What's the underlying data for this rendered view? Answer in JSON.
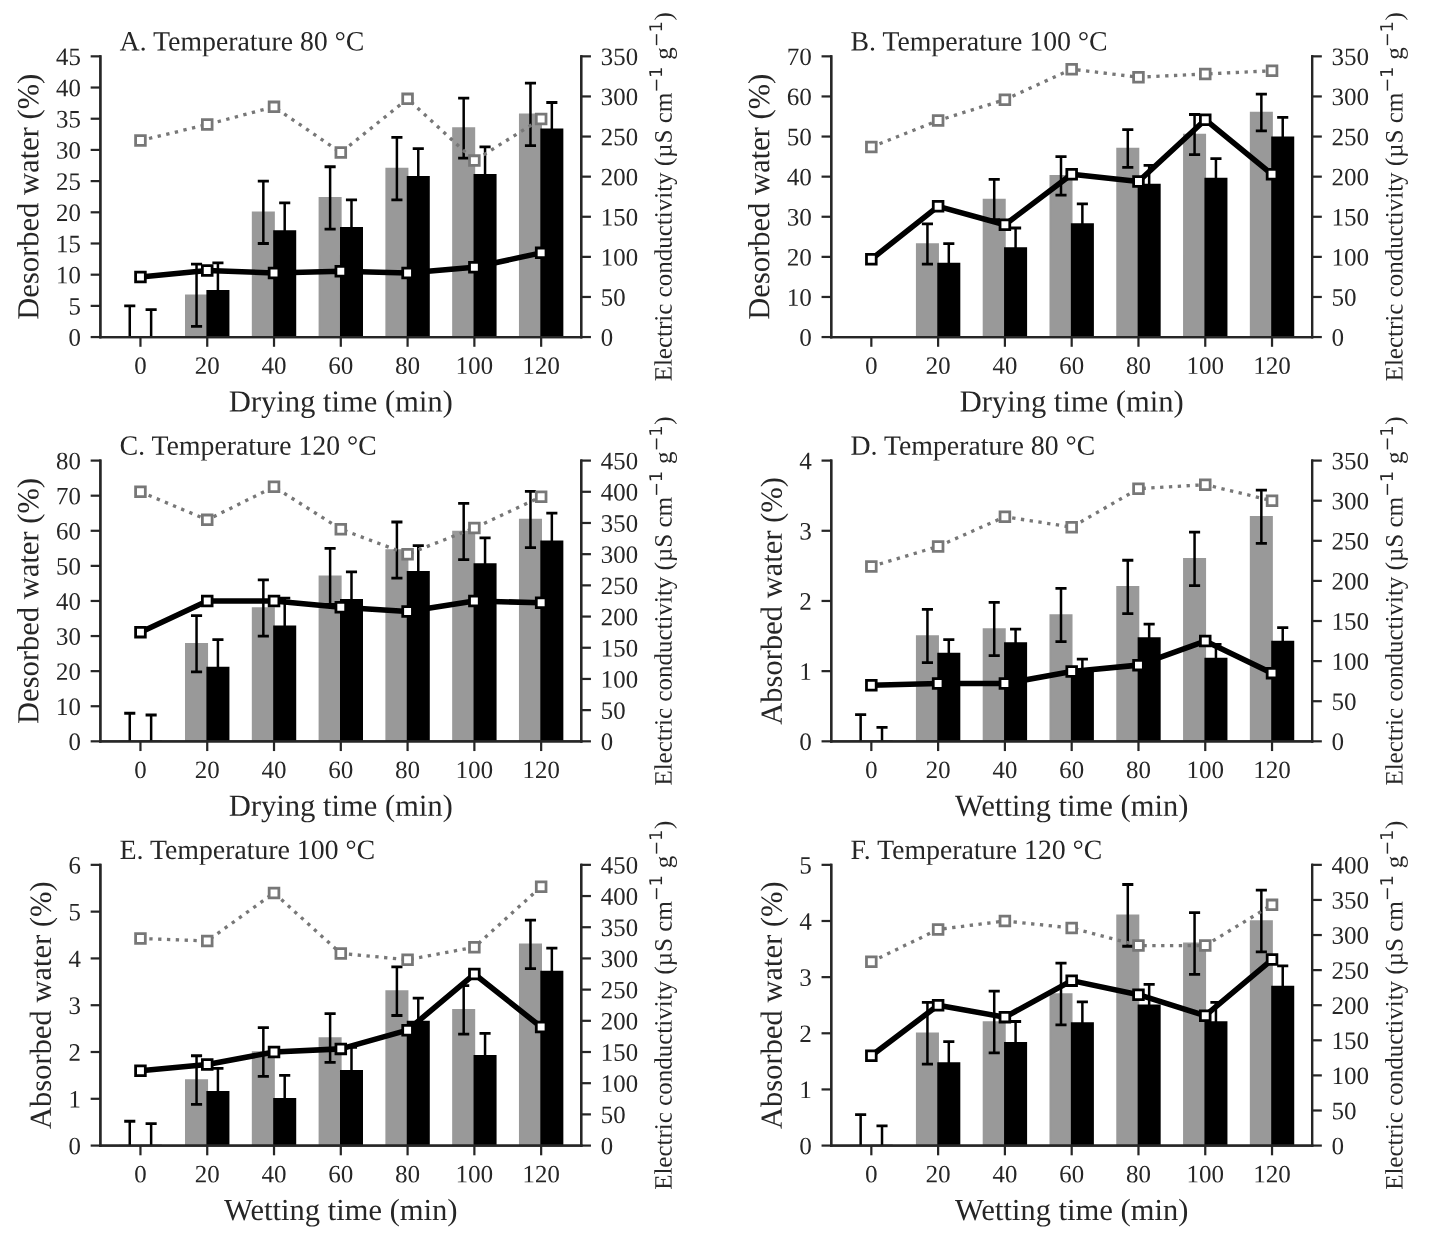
{
  "chart_data": [
    {
      "type": "bar",
      "title": "A. Temperature 80 °C",
      "xlabel": "Drying time (min)",
      "ylabel": "Desorbed water (%)",
      "y2label": "Electric conductivity (µS cm$^{−1}$ g$^{−1}$)",
      "categories": [
        "0",
        "20",
        "40",
        "60",
        "80",
        "100",
        "120"
      ],
      "ylim": [
        0,
        45
      ],
      "yticks": [
        0,
        5,
        10,
        15,
        20,
        25,
        30,
        35,
        40,
        45
      ],
      "y2lim": [
        0,
        350
      ],
      "y2ticks": [
        0,
        50,
        100,
        150,
        200,
        250,
        300,
        350
      ],
      "series": [
        {
          "type": "bar",
          "color": "#999999",
          "values": [
            0,
            6.7,
            20,
            22.3,
            27,
            33.5,
            35.7
          ],
          "errors": [
            5,
            5,
            5,
            5,
            5,
            4.8,
            5
          ]
        },
        {
          "type": "bar",
          "color": "#000000",
          "values": [
            0,
            7.4,
            17,
            17.5,
            25.7,
            26,
            33.3
          ],
          "errors": [
            4.4,
            4.5,
            4.5,
            4.5,
            4.5,
            4.5,
            4.3
          ]
        },
        {
          "type": "line",
          "axis": "y2",
          "color": "#777777",
          "marker": "square",
          "line_style": "dotted",
          "values": [
            245,
            265,
            287,
            230,
            297,
            220,
            272
          ]
        },
        {
          "type": "line",
          "axis": "y2",
          "color": "#000000",
          "marker": "square",
          "line_style": "solid",
          "values": [
            75,
            83,
            80,
            82,
            80,
            87,
            105
          ]
        }
      ]
    },
    {
      "type": "bar",
      "title": "B. Temperature 100 °C",
      "xlabel": "Drying time (min)",
      "ylabel": "Desorbed water (%)",
      "y2label": "Electric conductivity (µS cm$^{−1}$ g$^{−1}$)",
      "categories": [
        "0",
        "20",
        "40",
        "60",
        "80",
        "100",
        "120"
      ],
      "ylim": [
        0,
        70
      ],
      "yticks": [
        0,
        10,
        20,
        30,
        40,
        50,
        60,
        70
      ],
      "y2lim": [
        0,
        350
      ],
      "y2ticks": [
        0,
        50,
        100,
        150,
        200,
        250,
        300,
        350
      ],
      "series": [
        {
          "type": "bar",
          "color": "#999999",
          "values": [
            0,
            23.2,
            34.3,
            40.2,
            47,
            50.5,
            56
          ],
          "errors": [
            null,
            5,
            5,
            4.8,
            4.7,
            5,
            4.6
          ]
        },
        {
          "type": "bar",
          "color": "#000000",
          "values": [
            0,
            18.3,
            22.2,
            28.2,
            38,
            39.5,
            49.8
          ],
          "errors": [
            null,
            5,
            5,
            5,
            4.8,
            5,
            5
          ]
        },
        {
          "type": "line",
          "axis": "y2",
          "color": "#777777",
          "marker": "square",
          "line_style": "dotted",
          "values": [
            237,
            270,
            296,
            334,
            324,
            328,
            332
          ]
        },
        {
          "type": "line",
          "axis": "y2",
          "color": "#000000",
          "marker": "square",
          "line_style": "solid",
          "values": [
            97,
            163,
            140,
            203,
            194,
            271,
            203
          ]
        }
      ]
    },
    {
      "type": "bar",
      "title": "C. Temperature 120 °C",
      "xlabel": "Drying time (min)",
      "ylabel": "Desorbed water (%)",
      "y2label": "Electric conductivity (µS cm$^{−1}$ g$^{−1}$)",
      "categories": [
        "0",
        "20",
        "40",
        "60",
        "80",
        "100",
        "120"
      ],
      "ylim": [
        0,
        80
      ],
      "yticks": [
        0,
        10,
        20,
        30,
        40,
        50,
        60,
        70,
        80
      ],
      "y2lim": [
        0,
        450
      ],
      "y2ticks": [
        0,
        50,
        100,
        150,
        200,
        250,
        300,
        350,
        400,
        450
      ],
      "series": [
        {
          "type": "bar",
          "color": "#999999",
          "values": [
            0,
            27.8,
            38,
            47,
            54.5,
            59.8,
            63.2
          ],
          "errors": [
            8,
            8,
            8,
            8,
            8,
            8,
            8
          ]
        },
        {
          "type": "bar",
          "color": "#000000",
          "values": [
            0,
            21,
            32.8,
            40.3,
            48.3,
            50.5,
            57
          ],
          "errors": [
            7.5,
            8,
            8,
            8,
            7.5,
            7.5,
            8
          ]
        },
        {
          "type": "line",
          "axis": "y2",
          "color": "#777777",
          "marker": "square",
          "line_style": "dotted",
          "values": [
            400,
            355,
            408,
            340,
            300,
            342,
            392
          ]
        },
        {
          "type": "line",
          "axis": "y2",
          "color": "#000000",
          "marker": "square",
          "line_style": "solid",
          "values": [
            175,
            225,
            225,
            215,
            208,
            225,
            222
          ]
        }
      ]
    },
    {
      "type": "bar",
      "title": "D. Temperature 80 °C",
      "xlabel": "Wetting time (min)",
      "ylabel": "Absorbed water (%)",
      "y2label": "Electric conductivity (µS cm$^{−1}$ g$^{−1}$)",
      "categories": [
        "0",
        "20",
        "40",
        "60",
        "80",
        "100",
        "120"
      ],
      "ylim": [
        0,
        4
      ],
      "yticks": [
        0,
        1,
        2,
        3,
        4
      ],
      "y2lim": [
        0,
        350
      ],
      "y2ticks": [
        0,
        50,
        100,
        150,
        200,
        250,
        300,
        350
      ],
      "series": [
        {
          "type": "bar",
          "color": "#999999",
          "values": [
            0,
            1.5,
            1.6,
            1.8,
            2.2,
            2.6,
            3.2
          ],
          "errors": [
            0.38,
            0.38,
            0.38,
            0.38,
            0.38,
            0.38,
            0.38
          ]
        },
        {
          "type": "bar",
          "color": "#000000",
          "values": [
            0,
            1.25,
            1.4,
            1.0,
            1.47,
            1.18,
            1.42
          ],
          "errors": [
            0.2,
            0.2,
            0.2,
            0.17,
            0.2,
            0.2,
            0.2
          ]
        },
        {
          "type": "line",
          "axis": "y2",
          "color": "#777777",
          "marker": "square",
          "line_style": "dotted",
          "values": [
            218,
            243,
            280,
            267,
            315,
            320,
            300
          ]
        },
        {
          "type": "line",
          "axis": "y2",
          "color": "#000000",
          "marker": "square",
          "line_style": "solid",
          "values": [
            70,
            72,
            72,
            87,
            95,
            125,
            85
          ]
        }
      ]
    },
    {
      "type": "bar",
      "title": "E. Temperature 100 °C",
      "xlabel": "Wetting time (min)",
      "ylabel": "Absorbed water (%)",
      "y2label": "Electric conductivity (µS cm$^{−1}$ g$^{−1}$)",
      "categories": [
        "0",
        "20",
        "40",
        "60",
        "80",
        "100",
        "120"
      ],
      "ylim": [
        0,
        6
      ],
      "yticks": [
        0,
        1,
        2,
        3,
        4,
        5,
        6
      ],
      "y2lim": [
        0,
        450
      ],
      "y2ticks": [
        0,
        50,
        100,
        150,
        200,
        250,
        300,
        350,
        400,
        450
      ],
      "series": [
        {
          "type": "bar",
          "color": "#999999",
          "values": [
            0,
            1.4,
            2.0,
            2.3,
            3.3,
            2.9,
            4.3
          ],
          "errors": [
            0.52,
            0.52,
            0.52,
            0.52,
            0.52,
            0.52,
            0.52
          ]
        },
        {
          "type": "bar",
          "color": "#000000",
          "values": [
            0,
            1.15,
            1.0,
            1.6,
            2.65,
            1.92,
            3.72
          ],
          "errors": [
            0.47,
            0.5,
            0.5,
            0.5,
            0.5,
            0.48,
            0.5
          ]
        },
        {
          "type": "line",
          "axis": "y2",
          "color": "#777777",
          "marker": "square",
          "line_style": "dotted",
          "values": [
            332,
            328,
            405,
            308,
            298,
            318,
            415
          ]
        },
        {
          "type": "line",
          "axis": "y2",
          "color": "#000000",
          "marker": "square",
          "line_style": "solid",
          "values": [
            120,
            130,
            150,
            155,
            185,
            275,
            190
          ]
        }
      ]
    },
    {
      "type": "bar",
      "title": "F. Temperature 120 °C",
      "xlabel": "Wetting time (min)",
      "ylabel": "Absorbed water (%)",
      "y2label": "Electric conductivity (µS cm$^{−1}$ g$^{−1}$)",
      "categories": [
        "0",
        "20",
        "40",
        "60",
        "80",
        "100",
        "120"
      ],
      "ylim": [
        0,
        5
      ],
      "yticks": [
        0,
        1,
        2,
        3,
        4,
        5
      ],
      "y2lim": [
        0,
        400
      ],
      "y2ticks": [
        0,
        50,
        100,
        150,
        200,
        250,
        300,
        350,
        400
      ],
      "series": [
        {
          "type": "bar",
          "color": "#999999",
          "values": [
            0,
            2.0,
            2.2,
            2.7,
            4.1,
            3.6,
            4.0
          ],
          "errors": [
            0.55,
            0.55,
            0.55,
            0.55,
            0.55,
            0.55,
            0.55
          ]
        },
        {
          "type": "bar",
          "color": "#000000",
          "values": [
            0,
            1.47,
            1.83,
            2.18,
            2.5,
            2.2,
            2.83
          ],
          "errors": [
            0.35,
            0.38,
            0.38,
            0.38,
            0.37,
            0.35,
            0.37
          ]
        },
        {
          "type": "line",
          "axis": "y2",
          "color": "#777777",
          "marker": "square",
          "line_style": "dotted",
          "values": [
            262,
            308,
            320,
            310,
            285,
            285,
            343
          ]
        },
        {
          "type": "line",
          "axis": "y2",
          "color": "#000000",
          "marker": "square",
          "line_style": "solid",
          "values": [
            128,
            200,
            183,
            235,
            215,
            185,
            265
          ]
        }
      ]
    }
  ]
}
